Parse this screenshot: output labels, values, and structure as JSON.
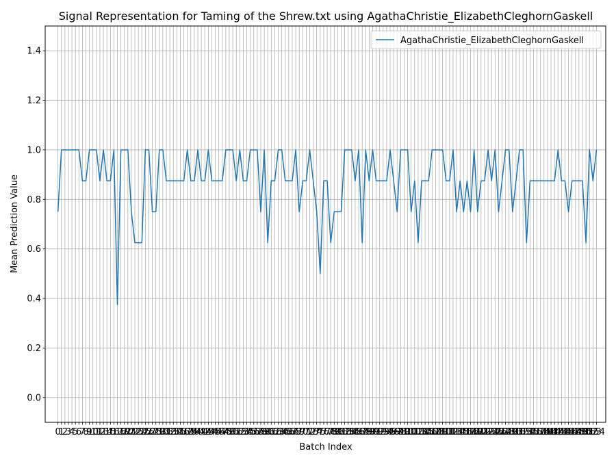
{
  "chart_data": {
    "type": "line",
    "title": "Signal Representation for Taming of the Shrew.txt using AgathaChristie_ElizabethCleghornGaskell",
    "xlabel": "Batch Index",
    "ylabel": "Mean Prediction Value",
    "xlim": [
      -3.65,
      156.65
    ],
    "ylim": [
      -0.1,
      1.5
    ],
    "yticks": [
      0.0,
      0.2,
      0.4,
      0.6,
      0.8,
      1.0,
      1.2,
      1.4
    ],
    "ytick_labels": [
      "0.0",
      "0.2",
      "0.4",
      "0.6",
      "0.8",
      "1.0",
      "1.2",
      "1.4"
    ],
    "grid": true,
    "legend_position": "top-right",
    "series": [
      {
        "name": "AgathaChristie_ElizabethCleghornGaskell",
        "color": "#1f77b4",
        "values": [
          0.75,
          1.0,
          1.0,
          1.0,
          1.0,
          1.0,
          1.0,
          0.875,
          0.875,
          1.0,
          1.0,
          1.0,
          0.875,
          1.0,
          0.875,
          0.875,
          1.0,
          0.375,
          1.0,
          1.0,
          1.0,
          0.75,
          0.625,
          0.625,
          0.625,
          1.0,
          1.0,
          0.75,
          0.75,
          1.0,
          1.0,
          0.875,
          0.875,
          0.875,
          0.875,
          0.875,
          0.875,
          1.0,
          0.875,
          0.875,
          1.0,
          0.875,
          0.875,
          1.0,
          0.875,
          0.875,
          0.875,
          0.875,
          1.0,
          1.0,
          1.0,
          0.875,
          1.0,
          0.875,
          0.875,
          1.0,
          1.0,
          1.0,
          0.75,
          1.0,
          0.625,
          0.875,
          0.875,
          1.0,
          1.0,
          0.875,
          0.875,
          0.875,
          1.0,
          0.75,
          0.875,
          0.875,
          1.0,
          0.875,
          0.75,
          0.5,
          0.875,
          0.875,
          0.625,
          0.75,
          0.75,
          0.75,
          1.0,
          1.0,
          1.0,
          0.875,
          1.0,
          0.625,
          1.0,
          0.875,
          1.0,
          0.875,
          0.875,
          0.875,
          0.875,
          1.0,
          0.875,
          0.75,
          1.0,
          1.0,
          1.0,
          0.75,
          0.875,
          0.625,
          0.875,
          0.875,
          0.875,
          1.0,
          1.0,
          1.0,
          1.0,
          0.875,
          0.875,
          1.0,
          0.75,
          0.875,
          0.75,
          0.875,
          0.75,
          1.0,
          0.75,
          0.875,
          0.875,
          1.0,
          0.875,
          1.0,
          0.75,
          0.875,
          1.0,
          1.0,
          0.75,
          0.875,
          1.0,
          1.0,
          0.625,
          0.875,
          0.875,
          0.875,
          0.875,
          0.875,
          0.875,
          0.875,
          0.875,
          1.0,
          0.875,
          0.875,
          0.75,
          0.875,
          0.875,
          0.875,
          0.875,
          0.625,
          1.0,
          0.875,
          1.0
        ]
      }
    ]
  }
}
